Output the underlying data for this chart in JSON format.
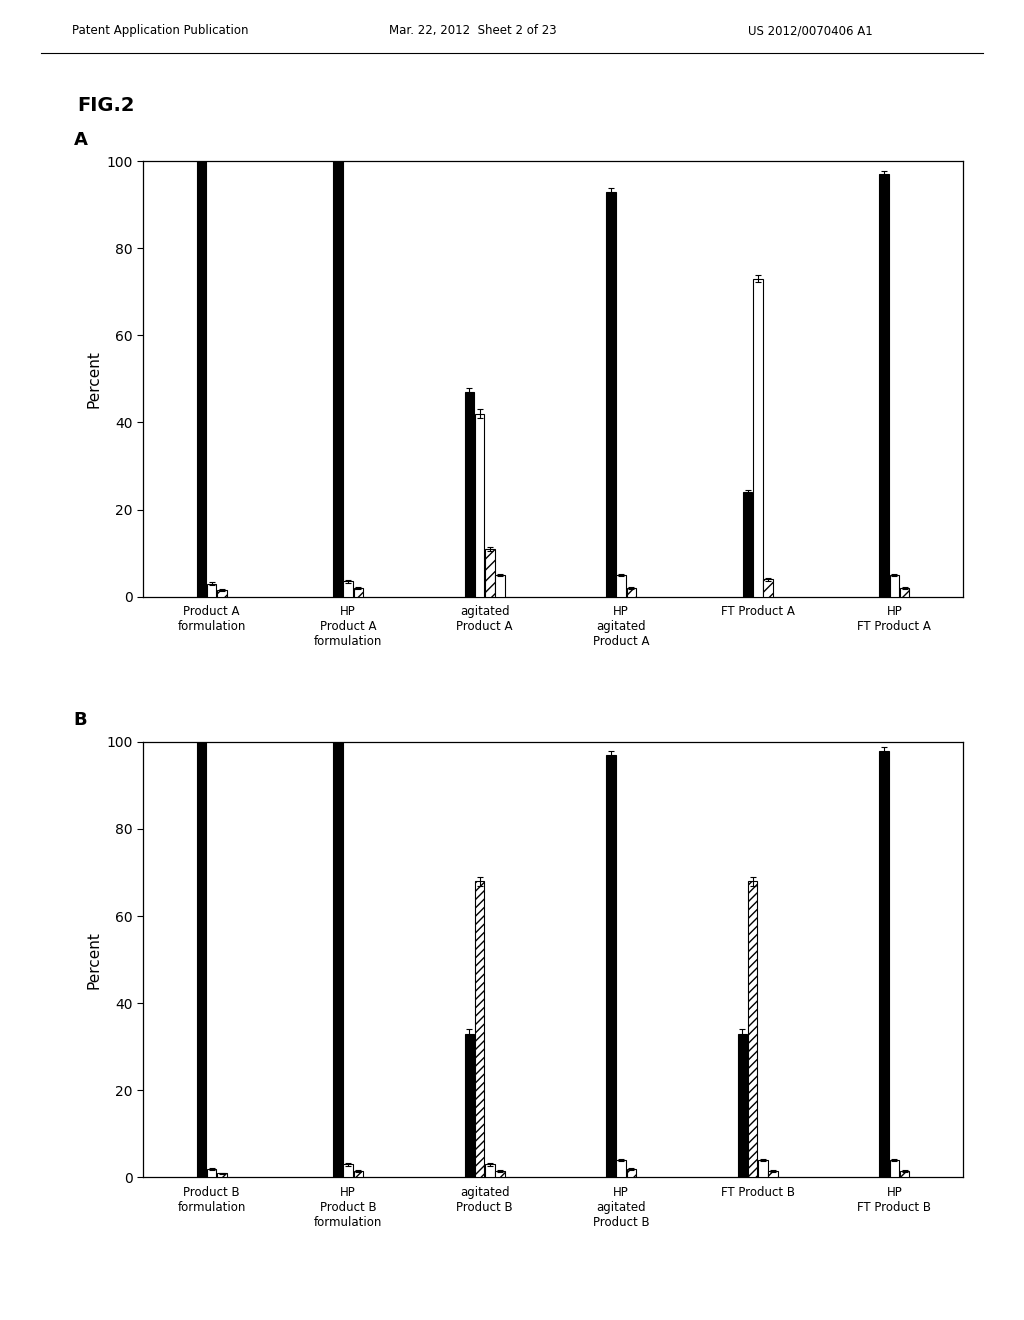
{
  "fig_label": "FIG.2",
  "header_left": "Patent Application Publication",
  "header_mid": "Mar. 22, 2012  Sheet 2 of 23",
  "header_right": "US 2012/0070406 A1",
  "panel_A": {
    "label": "A",
    "ylabel": "Percent",
    "ylim": [
      0,
      100
    ],
    "yticks": [
      0,
      20,
      40,
      60,
      80,
      100
    ],
    "groups": [
      {
        "name": "Product A\nformulation",
        "bars": [
          {
            "value": 100,
            "style": "black",
            "err": 0.4
          },
          {
            "value": 3.0,
            "style": "white",
            "err": 0.3
          },
          {
            "value": 1.5,
            "style": "hatch",
            "err": 0.2
          }
        ]
      },
      {
        "name": "HP\nProduct A\nformulation",
        "bars": [
          {
            "value": 100,
            "style": "black",
            "err": 0.4
          },
          {
            "value": 3.5,
            "style": "white",
            "err": 0.3
          },
          {
            "value": 2.0,
            "style": "hatch",
            "err": 0.2
          }
        ]
      },
      {
        "name": "agitated\nProduct A",
        "bars": [
          {
            "value": 47,
            "style": "black",
            "err": 1.0
          },
          {
            "value": 42,
            "style": "white",
            "err": 1.0
          },
          {
            "value": 11,
            "style": "hatch",
            "err": 0.5
          },
          {
            "value": 5,
            "style": "white2",
            "err": 0.3
          }
        ]
      },
      {
        "name": "HP\nagitated\nProduct A",
        "bars": [
          {
            "value": 93,
            "style": "black",
            "err": 0.8
          },
          {
            "value": 5,
            "style": "white",
            "err": 0.3
          },
          {
            "value": 2,
            "style": "hatch",
            "err": 0.2
          }
        ]
      },
      {
        "name": "FT Product A",
        "bars": [
          {
            "value": 24,
            "style": "black",
            "err": 0.5
          },
          {
            "value": 73,
            "style": "white",
            "err": 0.8
          },
          {
            "value": 4,
            "style": "hatch",
            "err": 0.3
          }
        ]
      },
      {
        "name": "HP\nFT Product A",
        "bars": [
          {
            "value": 97,
            "style": "black",
            "err": 0.8
          },
          {
            "value": 5,
            "style": "white",
            "err": 0.3
          },
          {
            "value": 2,
            "style": "hatch",
            "err": 0.2
          }
        ]
      }
    ]
  },
  "panel_B": {
    "label": "B",
    "ylabel": "Percent",
    "ylim": [
      0,
      100
    ],
    "yticks": [
      0,
      20,
      40,
      60,
      80,
      100
    ],
    "groups": [
      {
        "name": "Product B\nformulation",
        "bars": [
          {
            "value": 100,
            "style": "black",
            "err": 0.4
          },
          {
            "value": 2.0,
            "style": "white",
            "err": 0.2
          },
          {
            "value": 1.0,
            "style": "hatch",
            "err": 0.1
          }
        ]
      },
      {
        "name": "HP\nProduct B\nformulation",
        "bars": [
          {
            "value": 100,
            "style": "black",
            "err": 0.4
          },
          {
            "value": 3.0,
            "style": "white",
            "err": 0.3
          },
          {
            "value": 1.5,
            "style": "hatch",
            "err": 0.2
          }
        ]
      },
      {
        "name": "agitated\nProduct B",
        "bars": [
          {
            "value": 33,
            "style": "black",
            "err": 1.0
          },
          {
            "value": 68,
            "style": "hatch_diag",
            "err": 1.0
          },
          {
            "value": 3.0,
            "style": "white",
            "err": 0.3
          },
          {
            "value": 1.5,
            "style": "hatch",
            "err": 0.2
          }
        ]
      },
      {
        "name": "HP\nagitated\nProduct B",
        "bars": [
          {
            "value": 97,
            "style": "black",
            "err": 0.8
          },
          {
            "value": 4.0,
            "style": "white",
            "err": 0.3
          },
          {
            "value": 2.0,
            "style": "hatch",
            "err": 0.2
          }
        ]
      },
      {
        "name": "FT Product B",
        "bars": [
          {
            "value": 33,
            "style": "black",
            "err": 1.0
          },
          {
            "value": 68,
            "style": "hatch_diag",
            "err": 1.0
          },
          {
            "value": 4.0,
            "style": "white",
            "err": 0.3
          },
          {
            "value": 1.5,
            "style": "hatch",
            "err": 0.2
          }
        ]
      },
      {
        "name": "HP\nFT Product B",
        "bars": [
          {
            "value": 98,
            "style": "black",
            "err": 0.8
          },
          {
            "value": 4.0,
            "style": "white",
            "err": 0.3
          },
          {
            "value": 1.5,
            "style": "hatch",
            "err": 0.2
          }
        ]
      }
    ]
  },
  "background_color": "#ffffff",
  "bar_width": 0.07,
  "bar_gap": 0.005
}
